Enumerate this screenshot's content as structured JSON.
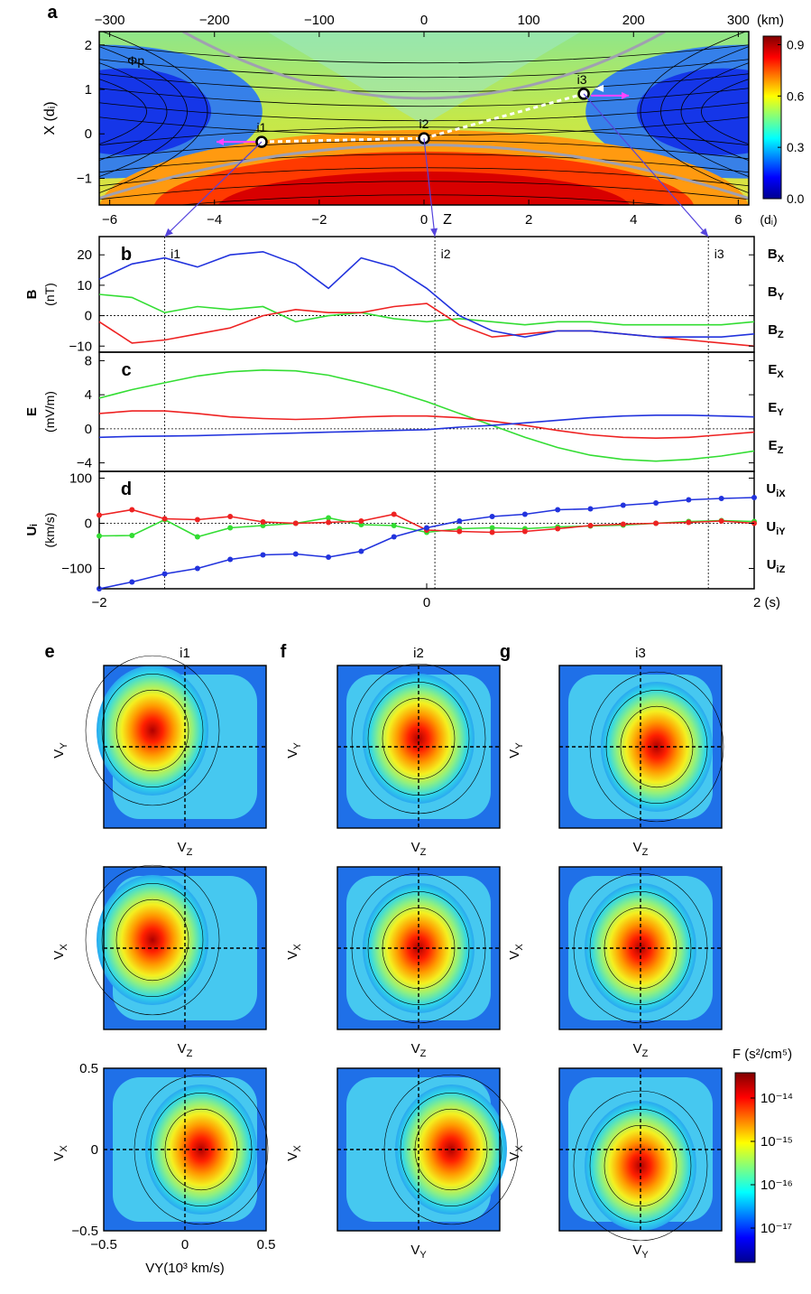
{
  "chart_data": [
    {
      "panel": "a",
      "type": "heatmap",
      "xlabel": "Z",
      "xunit": "(dᵢ)",
      "ylabel": "X (dᵢ)",
      "top_axis_unit": "(km)",
      "xlim": [
        -6.2,
        6.2
      ],
      "ylim": [
        -1.6,
        2.3
      ],
      "top_xlim": [
        -310,
        310
      ],
      "x_ticks": [
        "-6",
        "-4",
        "-2",
        "0",
        "2",
        "4",
        "6"
      ],
      "y_ticks": [
        "-1",
        "0",
        "1",
        "2"
      ],
      "top_ticks": [
        "-300",
        "-200",
        "-100",
        "0",
        "100",
        "200",
        "300"
      ],
      "colorbar": {
        "ticks": [
          "0.0",
          "0.3",
          "0.6",
          "0.9"
        ],
        "range": [
          0,
          0.95
        ]
      },
      "curve_label": "Φp",
      "points": [
        {
          "label": "i1",
          "x": -3.1,
          "y": -0.18
        },
        {
          "label": "i2",
          "x": 0.0,
          "y": -0.1
        },
        {
          "label": "i3",
          "x": 3.05,
          "y": 0.9
        }
      ]
    },
    {
      "panel": "b",
      "type": "line",
      "ylabel": "B",
      "yunit": "(nT)",
      "ylim": [
        -12,
        26
      ],
      "y_ticks": [
        "-10",
        "0",
        "10",
        "20"
      ],
      "x": [
        -2,
        -1.8,
        -1.6,
        -1.4,
        -1.2,
        -1,
        -0.8,
        -0.6,
        -0.4,
        -0.2,
        0,
        0.2,
        0.4,
        0.6,
        0.8,
        1,
        1.2,
        1.4,
        1.6,
        1.8,
        2
      ],
      "series": [
        {
          "name": "BX",
          "color": "#33dd33",
          "values": [
            7,
            6,
            1,
            3,
            2,
            3,
            -2,
            0,
            1,
            -1,
            -2,
            -1,
            -2,
            -3,
            -2,
            -2,
            -3,
            -3,
            -3,
            -3,
            -2
          ]
        },
        {
          "name": "BY",
          "color": "#ee2222",
          "values": [
            -2,
            -9,
            -8,
            -6,
            -4,
            0,
            2,
            1,
            1,
            3,
            4,
            -3,
            -7,
            -6,
            -5,
            -5,
            -6,
            -7,
            -8,
            -9,
            -10
          ]
        },
        {
          "name": "BZ",
          "color": "#2233dd",
          "values": [
            12,
            17,
            19,
            16,
            20,
            21,
            17,
            9,
            19,
            16,
            9,
            0,
            -5,
            -7,
            -5,
            -5,
            -6,
            -7,
            -7,
            -7,
            -6
          ]
        }
      ],
      "legend": [
        {
          "base": "B",
          "sub": "X",
          "color": "#33dd33"
        },
        {
          "base": "B",
          "sub": "Y",
          "color": "#ee2222"
        },
        {
          "base": "B",
          "sub": "Z",
          "color": "#2233dd"
        }
      ],
      "markers": [
        {
          "label": "i1",
          "t": -1.6
        },
        {
          "label": "i2",
          "t": 0.05
        },
        {
          "label": "i3",
          "t": 1.72
        }
      ]
    },
    {
      "panel": "c",
      "type": "line",
      "ylabel": "E",
      "yunit": "(mV/m)",
      "ylim": [
        -5,
        9
      ],
      "y_ticks": [
        "-4",
        "0",
        "4",
        "8"
      ],
      "x": [
        -2,
        -1.8,
        -1.6,
        -1.4,
        -1.2,
        -1,
        -0.8,
        -0.6,
        -0.4,
        -0.2,
        0,
        0.2,
        0.4,
        0.6,
        0.8,
        1,
        1.2,
        1.4,
        1.6,
        1.8,
        2
      ],
      "series": [
        {
          "name": "EX",
          "color": "#33dd33",
          "values": [
            3.6,
            4.6,
            5.4,
            6.2,
            6.7,
            6.9,
            6.8,
            6.3,
            5.4,
            4.4,
            3.2,
            1.8,
            0.4,
            -1,
            -2.2,
            -3.1,
            -3.6,
            -3.8,
            -3.6,
            -3.2,
            -2.6
          ]
        },
        {
          "name": "EY",
          "color": "#ee2222",
          "values": [
            1.8,
            2.1,
            2.1,
            1.8,
            1.4,
            1.2,
            1.1,
            1.2,
            1.4,
            1.5,
            1.5,
            1.3,
            0.9,
            0.4,
            -0.2,
            -0.7,
            -1,
            -1.1,
            -1,
            -0.7,
            -0.4
          ]
        },
        {
          "name": "EZ",
          "color": "#2233dd",
          "values": [
            -1,
            -0.9,
            -0.85,
            -0.8,
            -0.7,
            -0.6,
            -0.5,
            -0.4,
            -0.3,
            -0.2,
            -0.1,
            0.2,
            0.4,
            0.7,
            1,
            1.3,
            1.5,
            1.6,
            1.6,
            1.5,
            1.4
          ]
        }
      ],
      "legend": [
        {
          "base": "E",
          "sub": "X",
          "color": "#33dd33"
        },
        {
          "base": "E",
          "sub": "Y",
          "color": "#ee2222"
        },
        {
          "base": "E",
          "sub": "Z",
          "color": "#2233dd"
        }
      ]
    },
    {
      "panel": "d",
      "type": "line",
      "ylabel": "Uᵢ",
      "yunit": "(km/s)",
      "ylim": [
        -145,
        115
      ],
      "y_ticks": [
        "-100",
        "0",
        "100"
      ],
      "xlim": [
        -2,
        2
      ],
      "x_ticks": [
        {
          "label": "-2",
          "v": -2
        },
        {
          "label": "0",
          "v": 0
        },
        {
          "label": "2 (s)",
          "v": 2
        }
      ],
      "x": [
        -2,
        -1.8,
        -1.6,
        -1.4,
        -1.2,
        -1,
        -0.8,
        -0.6,
        -0.4,
        -0.2,
        0,
        0.2,
        0.4,
        0.6,
        0.8,
        1,
        1.2,
        1.4,
        1.6,
        1.8,
        2
      ],
      "series": [
        {
          "name": "UiX",
          "color": "#33dd33",
          "values": [
            -28,
            -27,
            8,
            -30,
            -10,
            -5,
            0,
            12,
            -3,
            -5,
            -20,
            -12,
            -10,
            -12,
            -8,
            -6,
            -4,
            0,
            4,
            6,
            4
          ]
        },
        {
          "name": "UiY",
          "color": "#ee2222",
          "values": [
            18,
            30,
            10,
            8,
            15,
            3,
            0,
            2,
            5,
            20,
            -15,
            -18,
            -20,
            -18,
            -12,
            -5,
            -2,
            0,
            2,
            5,
            0
          ]
        },
        {
          "name": "UiZ",
          "color": "#2233dd",
          "values": [
            -145,
            -130,
            -112,
            -100,
            -80,
            -70,
            -68,
            -75,
            -62,
            -30,
            -10,
            5,
            15,
            20,
            30,
            32,
            40,
            45,
            52,
            55,
            57
          ]
        }
      ],
      "legend": [
        {
          "base": "U",
          "sub": "iX",
          "color": "#33dd33"
        },
        {
          "base": "U",
          "sub": "iY",
          "color": "#ee2222"
        },
        {
          "base": "U",
          "sub": "iZ",
          "color": "#2233dd"
        }
      ]
    },
    {
      "panel": "e-g",
      "type": "heatmap",
      "columns": [
        {
          "letter": "e",
          "title": "i1"
        },
        {
          "letter": "f",
          "title": "i2"
        },
        {
          "letter": "g",
          "title": "i3"
        }
      ],
      "rows": [
        {
          "ylabel": "V",
          "ysub": "Y",
          "xlabel": "V",
          "xsub": "Z"
        },
        {
          "ylabel": "V",
          "ysub": "X",
          "xlabel": "V",
          "xsub": "Z"
        },
        {
          "ylabel": "V",
          "ysub": "X",
          "xlabel": "V",
          "xsub": "Y"
        }
      ],
      "bottom_left_xlabel": "VY(10³ km/s)",
      "xlim": [
        -0.5,
        0.5
      ],
      "ylim": [
        -0.5,
        0.5
      ],
      "x_ticks": [
        "-0.5",
        "0",
        "0.5"
      ],
      "y_ticks": [
        "0.5",
        "0",
        "-0.5"
      ],
      "colorbar": {
        "title": "F (s²/cm⁵)",
        "ticks": [
          "10⁻¹⁴",
          "10⁻¹⁵",
          "10⁻¹⁶",
          "10⁻¹⁷"
        ]
      }
    }
  ]
}
